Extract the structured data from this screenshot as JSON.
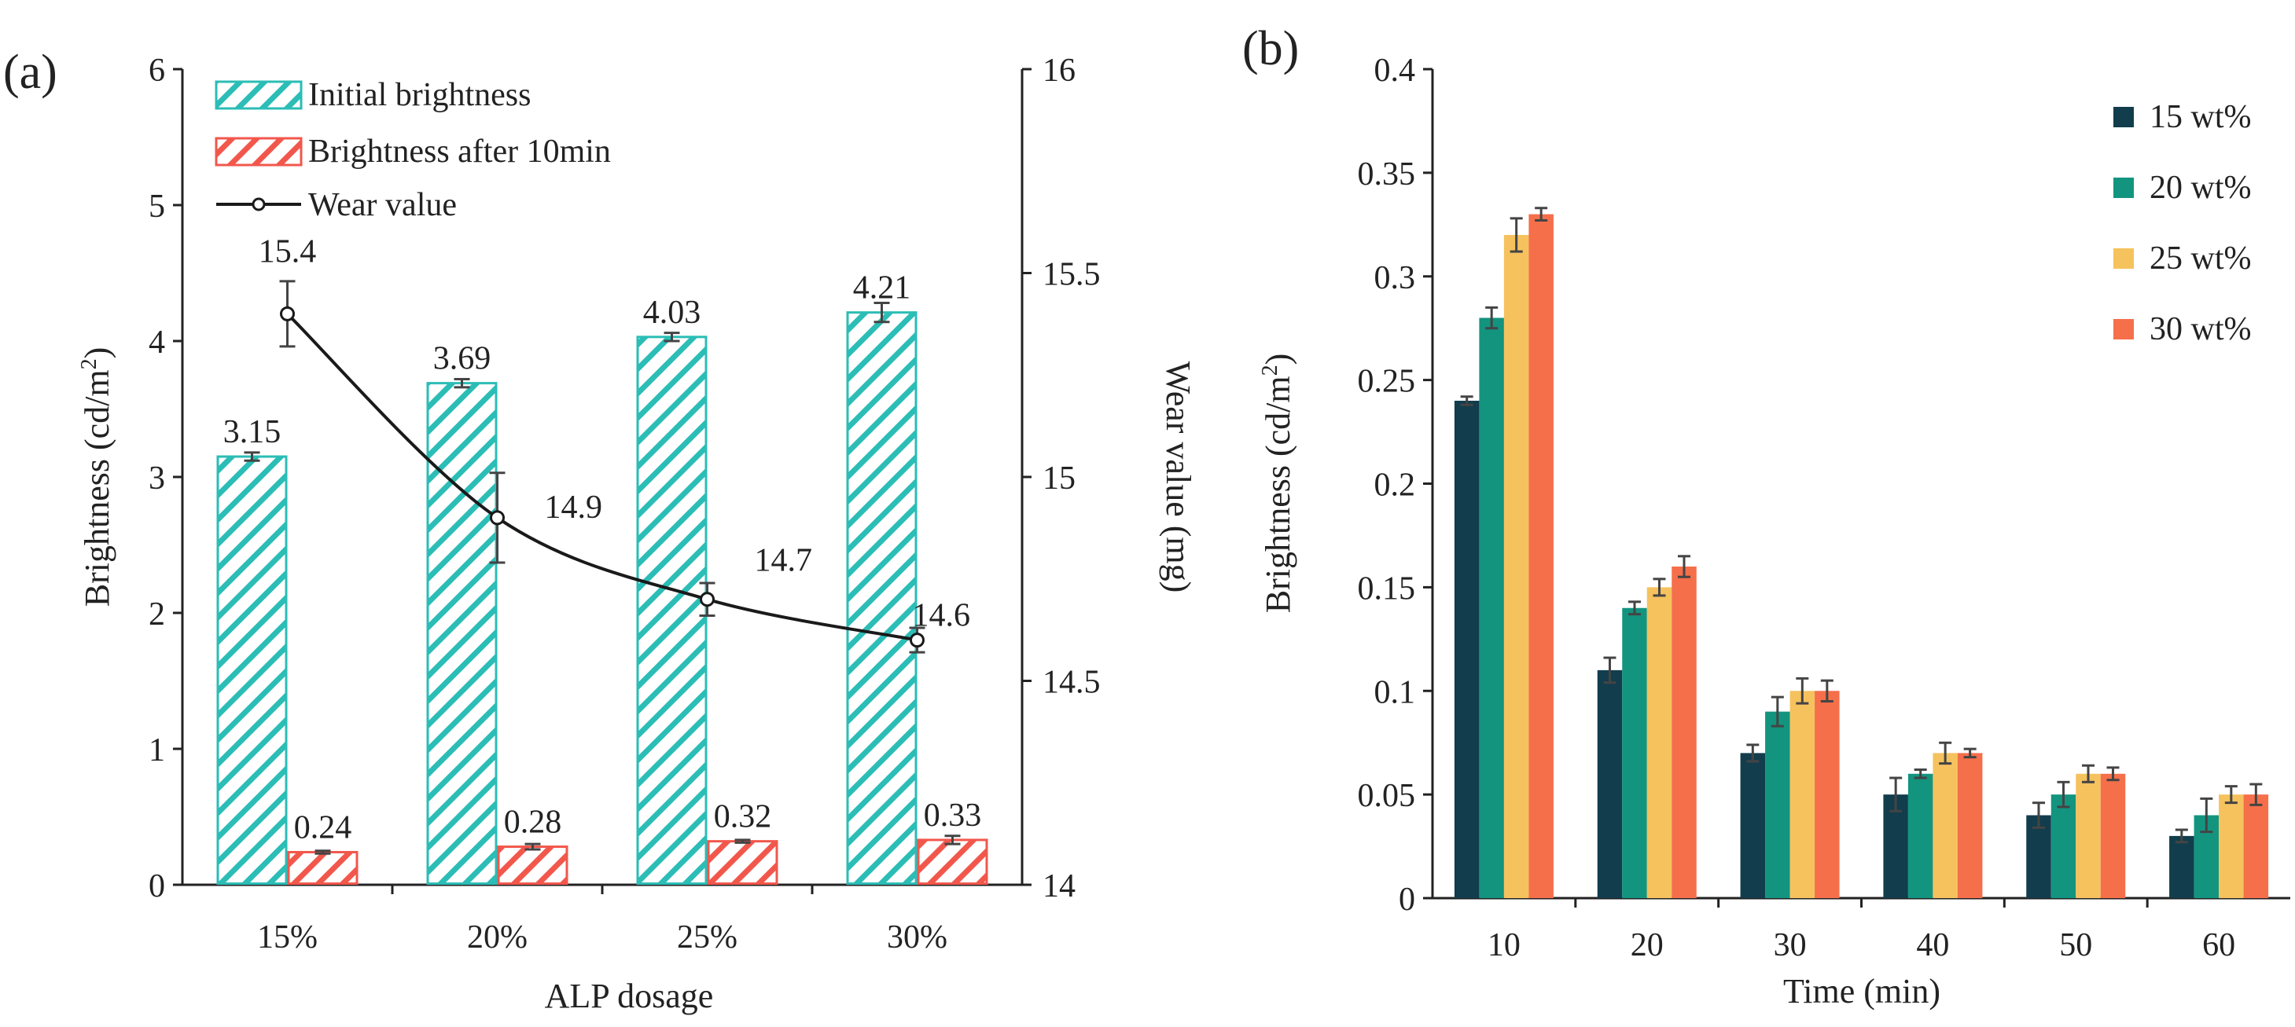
{
  "colors": {
    "teal_hatch": "#2bbdb6",
    "red_hatch": "#f2574c",
    "wear_line": "#1a1a1a",
    "dark_navy": "#123d4d",
    "green": "#13947f",
    "yellow": "#f5c25e",
    "orange": "#f56f4a",
    "axis": "#222222",
    "errbar": "#444444"
  },
  "chart_data": [
    {
      "panel_label": "(a)",
      "type": "bar",
      "categories": [
        "15%",
        "20%",
        "25%",
        "30%"
      ],
      "series": [
        {
          "name": "Initial brightness",
          "values": [
            3.15,
            3.69,
            4.03,
            4.21
          ],
          "errors": [
            0.03,
            0.03,
            0.03,
            0.07
          ],
          "value_labels": [
            "3.15",
            "3.69",
            "4.03",
            "4.21"
          ],
          "pattern": "hatch",
          "color": "#2bbdb6",
          "axis": "left"
        },
        {
          "name": "Brightness after 10min",
          "values": [
            0.24,
            0.28,
            0.32,
            0.33
          ],
          "errors": [
            0.01,
            0.02,
            0.01,
            0.03
          ],
          "value_labels": [
            "0.24",
            "0.28",
            "0.32",
            "0.33"
          ],
          "pattern": "hatch",
          "color": "#f2574c",
          "axis": "left"
        }
      ],
      "line_series": {
        "name": "Wear value",
        "values": [
          15.4,
          14.9,
          14.7,
          14.6
        ],
        "errors": [
          0.08,
          0.11,
          0.04,
          0.03
        ],
        "value_labels": [
          "15.4",
          "14.9",
          "14.7",
          "14.6"
        ],
        "axis": "right"
      },
      "xlabel": "ALP dosage",
      "ylabel_left": "Brightness (cd/m",
      "ylabel_left_sup": "2",
      "ylabel_left_close": ")",
      "ylabel_right": "Wear value (mg)",
      "ylim_left": [
        0,
        6
      ],
      "yticks_left": [
        "0",
        "1",
        "2",
        "3",
        "4",
        "5",
        "6"
      ],
      "ylim_right": [
        14,
        16
      ],
      "yticks_right": [
        "14",
        "14.5",
        "15",
        "15.5",
        "16"
      ],
      "legend_position": "top-left",
      "grid": false
    },
    {
      "panel_label": "(b)",
      "type": "bar",
      "categories": [
        "10",
        "20",
        "30",
        "40",
        "50",
        "60"
      ],
      "series": [
        {
          "name": "15 wt%",
          "values": [
            0.24,
            0.11,
            0.07,
            0.05,
            0.04,
            0.03
          ],
          "errors": [
            0.002,
            0.006,
            0.004,
            0.008,
            0.006,
            0.003
          ],
          "color": "#123d4d"
        },
        {
          "name": "20 wt%",
          "values": [
            0.28,
            0.14,
            0.09,
            0.06,
            0.05,
            0.04
          ],
          "errors": [
            0.005,
            0.003,
            0.007,
            0.002,
            0.006,
            0.008
          ],
          "color": "#13947f"
        },
        {
          "name": "25 wt%",
          "values": [
            0.32,
            0.15,
            0.1,
            0.07,
            0.06,
            0.05
          ],
          "errors": [
            0.008,
            0.004,
            0.006,
            0.005,
            0.004,
            0.004
          ],
          "color": "#f5c25e"
        },
        {
          "name": "30 wt%",
          "values": [
            0.33,
            0.16,
            0.1,
            0.07,
            0.06,
            0.05
          ],
          "errors": [
            0.003,
            0.005,
            0.005,
            0.002,
            0.003,
            0.005
          ],
          "color": "#f56f4a"
        }
      ],
      "xlabel": "Time (min)",
      "ylabel": "Brightness (cd/m",
      "ylabel_sup": "2",
      "ylabel_close": ")",
      "ylim": [
        0,
        0.4
      ],
      "yticks": [
        "0",
        "0.05",
        "0.1",
        "0.15",
        "0.2",
        "0.25",
        "0.3",
        "0.35",
        "0.4"
      ],
      "legend_position": "top-right",
      "grid": false
    }
  ]
}
